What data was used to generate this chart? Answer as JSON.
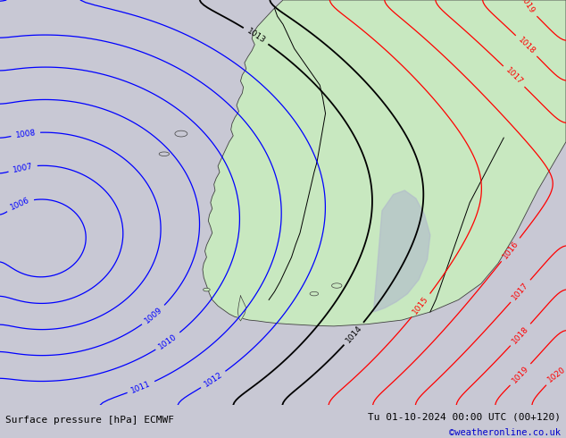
{
  "title_left": "Surface pressure [hPa] ECMWF",
  "title_right": "Tu 01-10-2024 00:00 UTC (00+120)",
  "credit": "©weatheronline.co.uk",
  "bg_sea_color": "#c8c8d4",
  "land_fill_color": "#c8e8c0",
  "coast_color": "#404040",
  "border_color": "#000000",
  "contour_blue_color": "#0000ff",
  "contour_black_color": "#000000",
  "contour_red_color": "#ff0000",
  "bottom_bar_color": "#c8c8d4",
  "bottom_text_color": "#000000",
  "credit_color": "#0000cc",
  "figsize": [
    6.34,
    4.9
  ],
  "dpi": 100,
  "label_fontsize": 8.0,
  "credit_fontsize": 7.5,
  "clabel_fontsize": 6.5
}
